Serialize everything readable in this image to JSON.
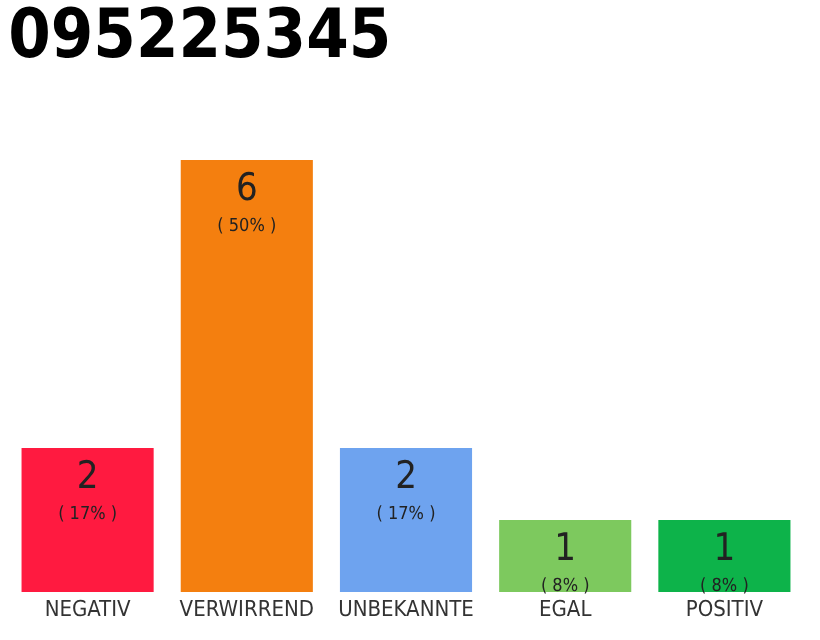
{
  "chart_data": {
    "type": "bar",
    "title": "095225345",
    "categories": [
      "NEGATIV",
      "VERWIRREND",
      "UNBEKANNTE",
      "EGAL",
      "POSITIV"
    ],
    "values": [
      2,
      6,
      2,
      1,
      1
    ],
    "colors": [
      "#ff1a40",
      "#f47f0f",
      "#6ea3ef",
      "#7dc95e",
      "#0db34a"
    ],
    "value_labels": [
      "2\n( 17% )",
      "6\n( 50% )",
      "2\n( 17% )",
      "1\n( 8% )",
      "1\n( 8% )"
    ],
    "ylim": [
      0,
      6
    ],
    "grid": false,
    "legend": false,
    "tick_labels": "x"
  }
}
